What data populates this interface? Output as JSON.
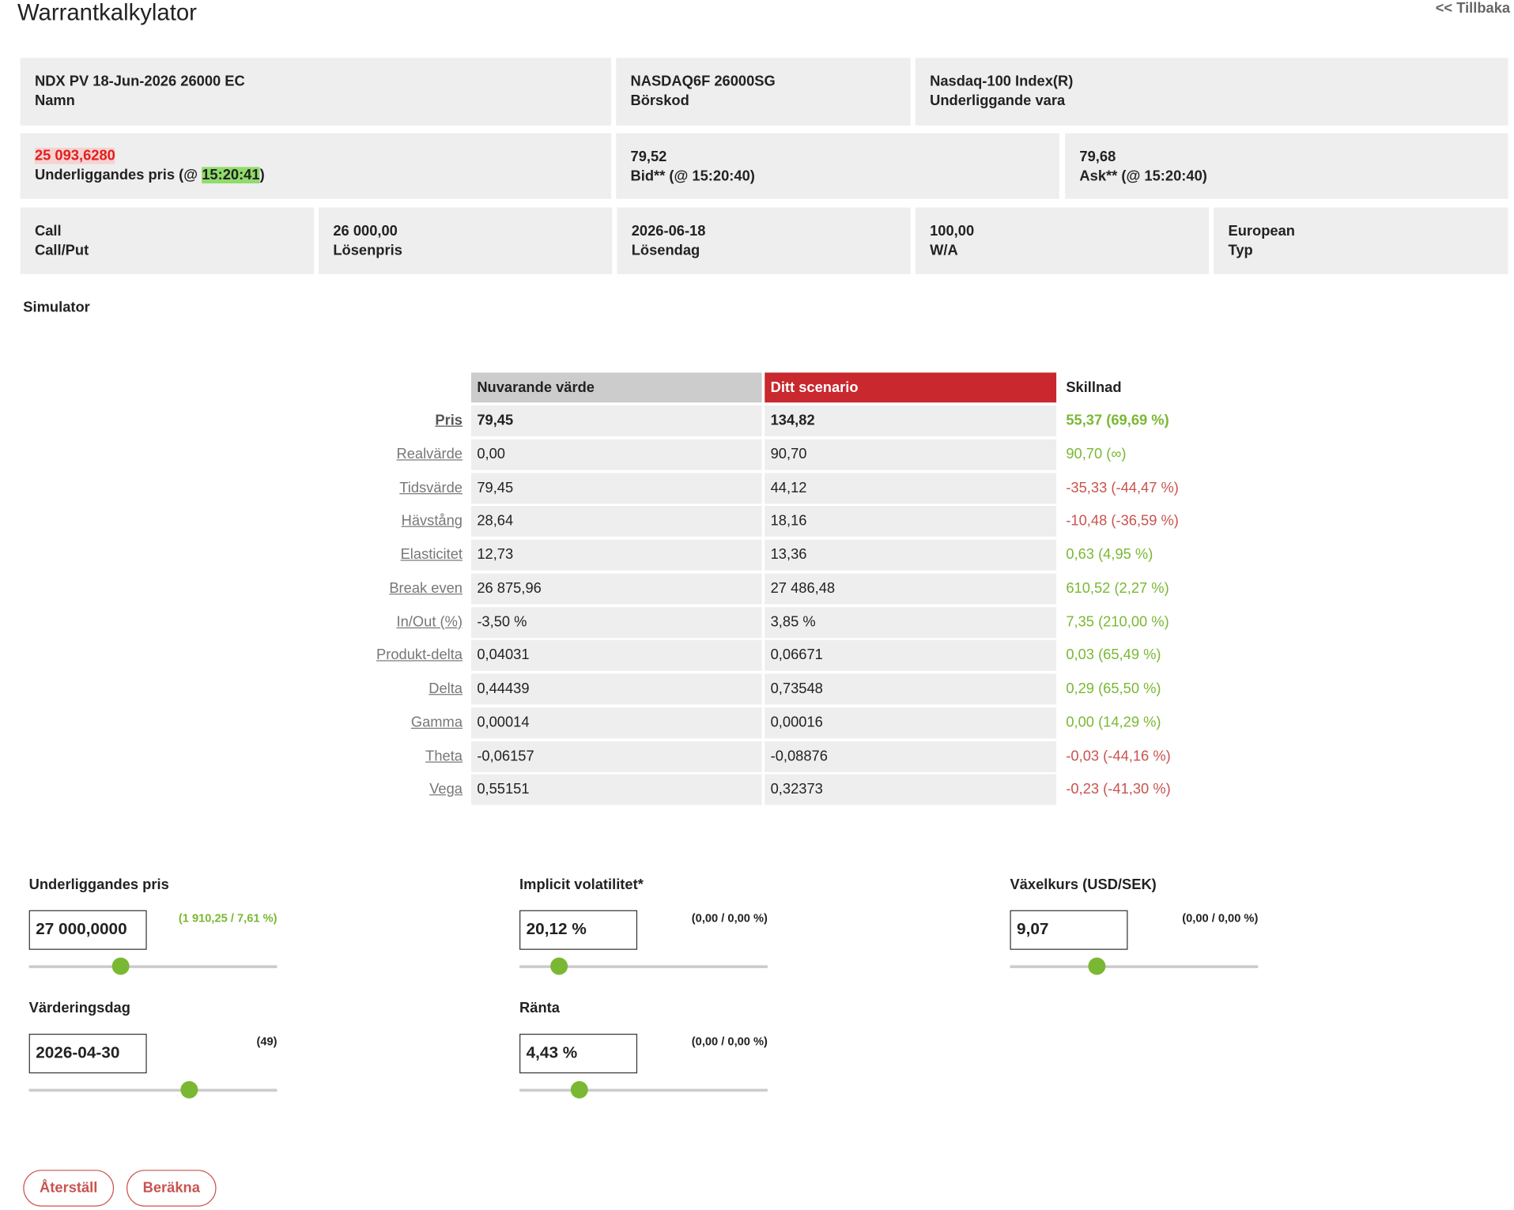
{
  "header": {
    "title": "Warrantkalkylator",
    "back": "<< Tillbaka"
  },
  "info": {
    "row1": [
      {
        "value": "NDX PV 18-Jun-2026 26000 EC",
        "label": "Namn"
      },
      {
        "value": "NASDAQ6F 26000SG",
        "label": "Börskod"
      },
      {
        "value": "Nasdaq-100 Index(R)",
        "label": "Underliggande vara"
      }
    ],
    "underlying": {
      "value": "25 093,6280",
      "label_prefix": "Underliggandes pris (@ ",
      "time": "15:20:41",
      "label_suffix": ")"
    },
    "row2": [
      {
        "value": "79,52",
        "label": "Bid** (@ 15:20:40)"
      },
      {
        "value": "79,68",
        "label": "Ask** (@ 15:20:40)"
      }
    ],
    "row3": [
      {
        "value": "Call",
        "label": "Call/Put"
      },
      {
        "value": "26 000,00",
        "label": "Lösenpris"
      },
      {
        "value": "2026-06-18",
        "label": "Lösendag"
      },
      {
        "value": "100,00",
        "label": "W/A"
      },
      {
        "value": "European",
        "label": "Typ"
      }
    ]
  },
  "simulator": {
    "title": "Simulator",
    "columns": [
      "Nuvarande värde",
      "Ditt scenario",
      "Skillnad"
    ],
    "up_color": "#7ab833",
    "down_color": "#c9534f",
    "rows": [
      {
        "label": "Pris",
        "current": "79,45",
        "scenario": "134,82",
        "diff": "55,37",
        "diff_pct": "(69,69 %)",
        "trend": "up"
      },
      {
        "label": "Realvärde",
        "current": "0,00",
        "scenario": "90,70",
        "diff": "90,70",
        "diff_pct": "(∞)",
        "trend": "up"
      },
      {
        "label": "Tidsvärde",
        "current": "79,45",
        "scenario": "44,12",
        "diff": "-35,33",
        "diff_pct": "(-44,47 %)",
        "trend": "down"
      },
      {
        "label": "Hävstång",
        "current": "28,64",
        "scenario": "18,16",
        "diff": "-10,48",
        "diff_pct": "(-36,59 %)",
        "trend": "down"
      },
      {
        "label": "Elasticitet",
        "current": "12,73",
        "scenario": "13,36",
        "diff": "0,63",
        "diff_pct": "(4,95 %)",
        "trend": "up"
      },
      {
        "label": "Break even",
        "current": "26 875,96",
        "scenario": "27 486,48",
        "diff": "610,52",
        "diff_pct": "(2,27 %)",
        "trend": "up"
      },
      {
        "label": "In/Out (%)",
        "current": "-3,50 %",
        "scenario": "3,85 %",
        "diff": "7,35",
        "diff_pct": "(210,00 %)",
        "trend": "up"
      },
      {
        "label": "Produkt-delta",
        "current": "0,04031",
        "scenario": "0,06671",
        "diff": "0,03",
        "diff_pct": "(65,49 %)",
        "trend": "up"
      },
      {
        "label": "Delta",
        "current": "0,44439",
        "scenario": "0,73548",
        "diff": "0,29",
        "diff_pct": "(65,50 %)",
        "trend": "up"
      },
      {
        "label": "Gamma",
        "current": "0,00014",
        "scenario": "0,00016",
        "diff": "0,00",
        "diff_pct": "(14,29 %)",
        "trend": "up"
      },
      {
        "label": "Theta",
        "current": "-0,06157",
        "scenario": "-0,08876",
        "diff": "-0,03",
        "diff_pct": "(-44,16 %)",
        "trend": "down"
      },
      {
        "label": "Vega",
        "current": "0,55151",
        "scenario": "0,32373",
        "diff": "-0,23",
        "diff_pct": "(-41,30 %)",
        "trend": "down"
      }
    ]
  },
  "inputs": [
    {
      "label": "Underliggandes pris",
      "value": "27 000,0000",
      "change": "(1 910,25 / 7,61 %)",
      "change_color": "#7ab833"
    },
    {
      "label": "Implicit volatilitet*",
      "value": "20,12 %",
      "change": "(0,00 / 0,00 %)",
      "change_color": "#222"
    },
    {
      "label": "Växelkurs (USD/SEK)",
      "value": "9,07",
      "change": "(0,00 / 0,00 %)",
      "change_color": "#222"
    },
    {
      "label": "Värderingsdag",
      "value": "2026-04-30",
      "change": "(49)",
      "change_color": "#222"
    },
    {
      "label": "Ränta",
      "value": "4,43 %",
      "change": "(0,00 / 0,00 %)",
      "change_color": "#222"
    }
  ],
  "buttons": [
    "Återställ",
    "Beräkna"
  ]
}
